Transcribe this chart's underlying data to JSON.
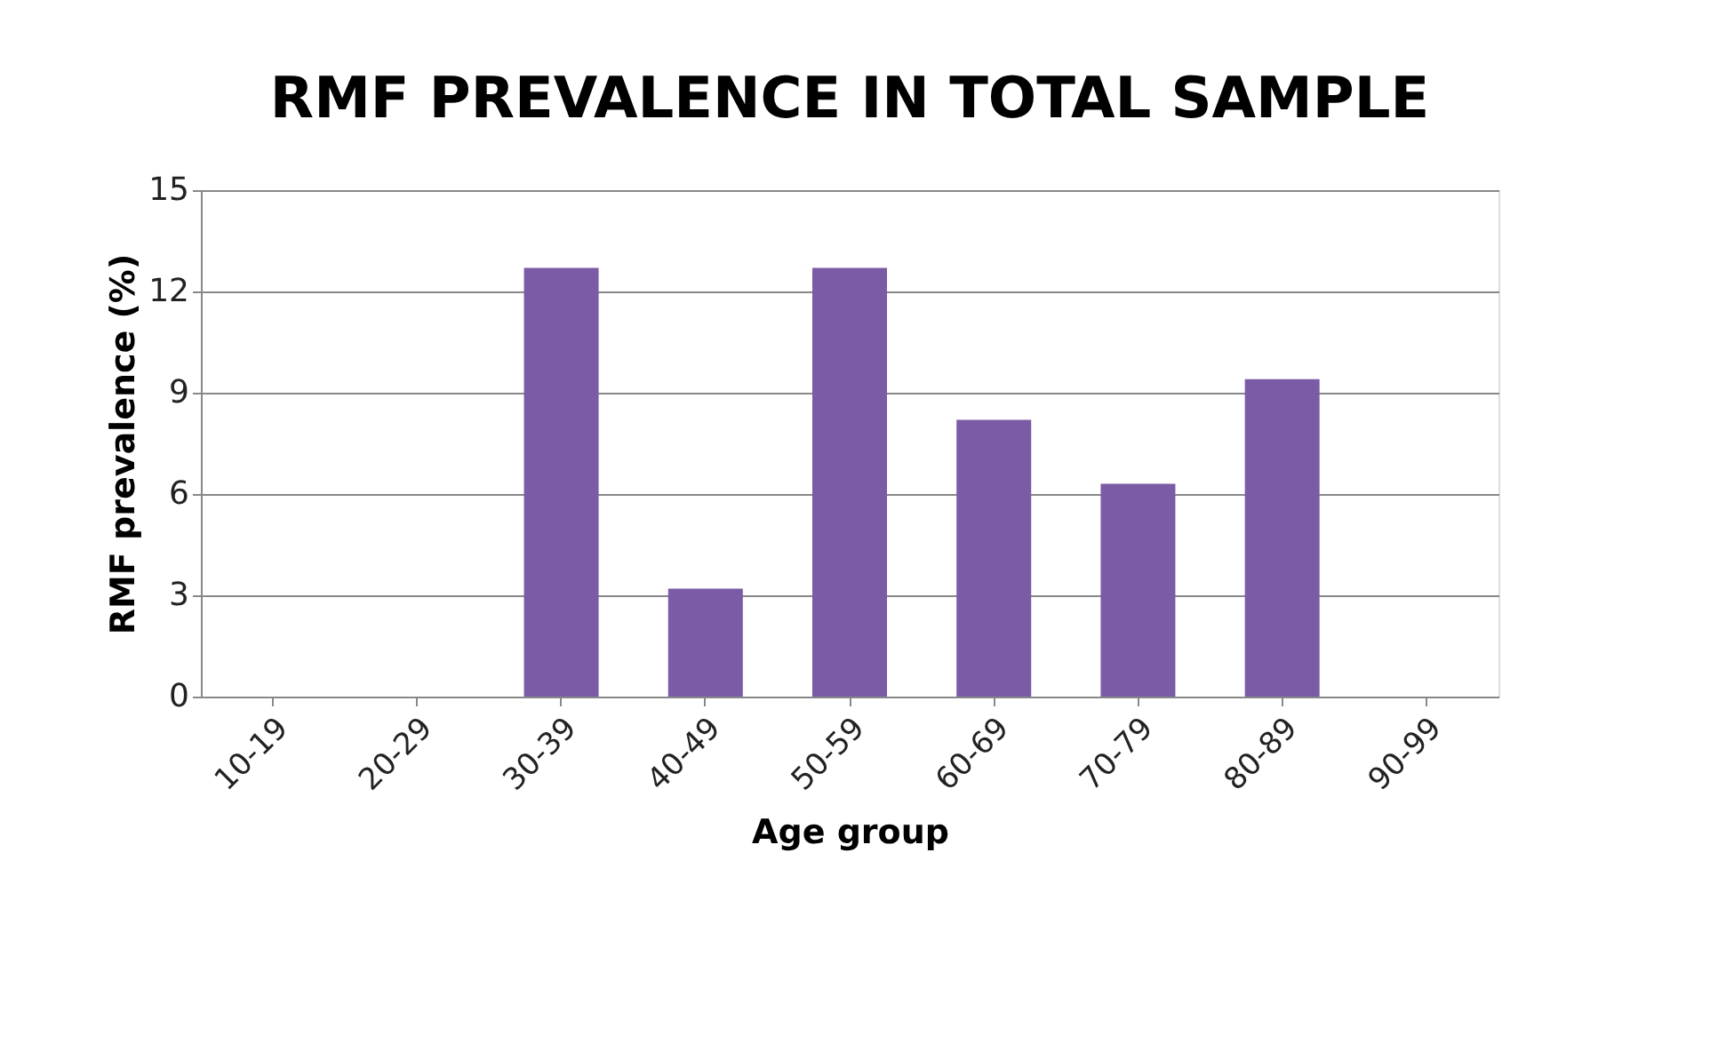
{
  "chart_data": {
    "type": "bar",
    "title": "RMF PREVALENCE IN TOTAL SAMPLE",
    "xlabel": "Age group",
    "ylabel": "RMF prevalence (%)",
    "categories": [
      "10-19",
      "20-29",
      "30-39",
      "40-49",
      "50-59",
      "60-69",
      "70-79",
      "80-89",
      "90-99"
    ],
    "values": [
      0,
      0,
      12.7,
      3.2,
      12.7,
      8.2,
      6.3,
      9.4,
      0
    ],
    "color": "#7b5ba6",
    "ylim": [
      0,
      15
    ],
    "yticks": [
      0,
      3,
      6,
      9,
      12,
      15
    ],
    "grid": "y"
  }
}
